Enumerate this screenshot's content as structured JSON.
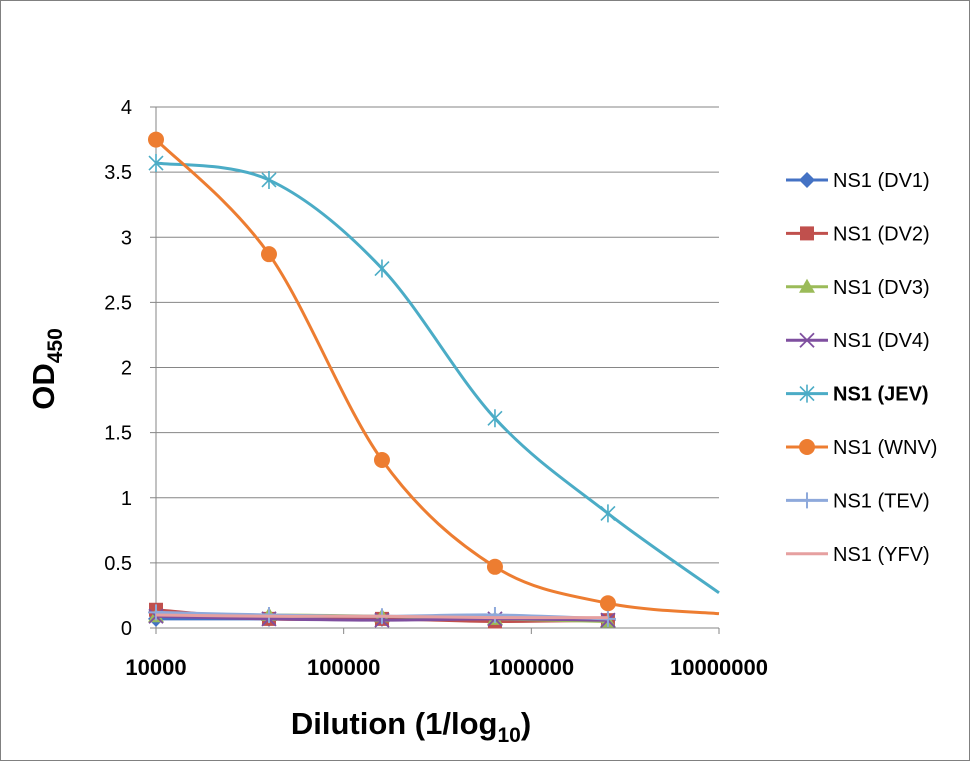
{
  "chart_data": {
    "type": "line",
    "title": "",
    "xlabel": "Dilution (1/log",
    "xlabel_sub": "10",
    "xlabel_suffix": ")",
    "ylabel": "OD",
    "ylabel_sub": "450",
    "x_scale": "log",
    "xlim": [
      10000,
      10000000
    ],
    "ylim": [
      0,
      4
    ],
    "x_ticks": [
      "10000",
      "100000",
      "1000000",
      "10000000"
    ],
    "y_ticks": [
      "0",
      "0.5",
      "1",
      "1.5",
      "2",
      "2.5",
      "3",
      "3.5",
      "4"
    ],
    "grid": "horizontal",
    "legend_position": "right",
    "x": [
      10000,
      40000,
      160000,
      640000,
      2560000
    ],
    "series": [
      {
        "name": "NS1 (DV1)",
        "color": "#4472C4",
        "marker": "diamond",
        "bold": false,
        "values": [
          0.07,
          0.07,
          0.07,
          0.06,
          0.06
        ],
        "smooth_end": null
      },
      {
        "name": "NS1 (DV2)",
        "color": "#C0504D",
        "marker": "square",
        "bold": false,
        "values": [
          0.14,
          0.07,
          0.07,
          0.05,
          0.06
        ],
        "smooth_end": null
      },
      {
        "name": "NS1 (DV3)",
        "color": "#9BBB59",
        "marker": "triangle",
        "bold": false,
        "values": [
          0.09,
          0.1,
          0.09,
          0.07,
          0.05
        ],
        "smooth_end": null
      },
      {
        "name": "NS1 (DV4)",
        "color": "#7F4F9F",
        "marker": "x",
        "bold": false,
        "values": [
          0.09,
          0.07,
          0.06,
          0.07,
          0.06
        ],
        "smooth_end": null
      },
      {
        "name": "NS1 (JEV)",
        "color": "#4BACC6",
        "marker": "star",
        "bold": true,
        "values": [
          3.57,
          3.44,
          2.76,
          1.61,
          0.88
        ],
        "smooth_end": 0.27
      },
      {
        "name": "NS1 (WNV)",
        "color": "#ED7D31",
        "marker": "circle",
        "bold": false,
        "values": [
          3.75,
          2.87,
          1.29,
          0.47,
          0.19
        ],
        "smooth_end": 0.11
      },
      {
        "name": "NS1 (TEV)",
        "color": "#8EA9DB",
        "marker": "plus",
        "bold": false,
        "values": [
          0.12,
          0.1,
          0.09,
          0.1,
          0.07
        ],
        "smooth_end": null
      },
      {
        "name": "NS1 (YFV)",
        "color": "#E6A0A0",
        "marker": "none",
        "bold": false,
        "values": [
          0.1,
          0.09,
          0.09,
          0.08,
          0.08
        ],
        "smooth_end": null
      }
    ]
  }
}
